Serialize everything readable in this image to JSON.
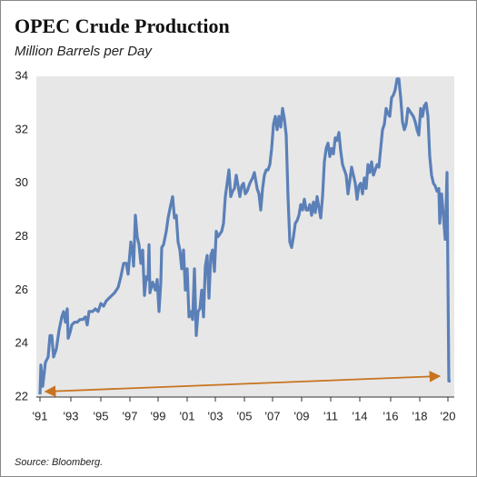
{
  "chart_data": {
    "type": "line",
    "title": "OPEC Crude Production",
    "subtitle": "Million Barrels per Day",
    "source": "Source: Bloomberg.",
    "x": [
      0,
      1,
      3,
      6,
      9,
      11,
      13,
      15,
      18,
      21,
      24,
      26,
      28,
      30,
      31,
      33,
      35,
      38,
      41,
      44,
      47,
      50,
      52,
      54,
      58,
      61,
      64,
      67,
      70,
      73,
      76,
      79,
      82,
      86,
      89,
      92,
      95,
      97,
      100,
      102,
      103,
      105,
      107,
      109,
      111,
      113,
      115,
      117,
      119,
      120,
      121,
      124,
      127,
      129,
      131,
      133,
      134,
      136,
      139,
      141,
      144,
      146,
      148,
      150,
      152,
      154,
      156,
      158,
      160,
      162,
      164,
      166,
      168,
      170,
      172,
      174,
      176,
      178,
      180,
      182,
      184,
      186,
      188,
      190,
      192,
      194,
      196,
      198,
      200,
      202,
      204,
      206,
      208,
      210,
      212,
      214,
      216,
      218,
      220,
      222,
      224,
      226,
      228,
      231,
      234,
      236,
      239,
      241,
      243,
      245,
      247,
      249,
      251,
      253,
      255,
      257,
      259,
      261,
      263,
      265,
      267,
      269,
      271,
      273,
      275,
      277,
      279,
      281,
      283,
      285,
      287,
      289,
      291,
      293,
      295,
      297,
      299,
      301,
      303,
      305,
      307,
      309,
      311,
      313,
      315,
      317,
      319,
      321,
      323,
      325,
      327,
      329,
      331,
      333,
      335,
      337,
      339,
      341,
      343,
      345,
      347,
      349,
      351,
      353,
      355,
      357,
      359,
      361,
      363,
      365,
      367,
      369,
      371,
      373,
      375,
      377,
      379,
      381,
      383,
      385,
      387,
      389,
      391,
      393,
      395,
      397,
      399,
      401,
      403,
      405,
      407,
      409,
      411,
      413,
      415,
      417,
      419,
      421,
      423,
      425,
      427,
      429,
      431,
      433,
      435,
      437,
      439,
      440,
      442,
      444,
      446,
      448,
      450,
      452
    ],
    "series": [
      {
        "color": "#5b80b8",
        "values": [
          22.1,
          23.2,
          22.4,
          23.3,
          23.5,
          24.3,
          24.3,
          23.5,
          23.8,
          24.5,
          25.0,
          25.2,
          24.8,
          25.3,
          24.2,
          24.4,
          24.7,
          24.8,
          24.8,
          24.9,
          24.9,
          25.0,
          24.7,
          25.2,
          25.2,
          25.3,
          25.2,
          25.5,
          25.4,
          25.6,
          25.7,
          25.8,
          25.9,
          26.1,
          26.5,
          27.0,
          27.0,
          26.6,
          27.8,
          27.4,
          26.9,
          28.8,
          28.0,
          27.7,
          27.0,
          27.5,
          25.8,
          26.5,
          26.4,
          27.7,
          25.9,
          26.3,
          26.0,
          26.4,
          25.2,
          26.3,
          27.6,
          27.7,
          28.2,
          28.7,
          29.2,
          29.5,
          28.7,
          28.8,
          27.8,
          27.5,
          26.8,
          27.5,
          26.0,
          26.8,
          25.0,
          25.2,
          24.9,
          26.8,
          24.3,
          25.2,
          25.3,
          26.0,
          25.0,
          26.9,
          27.3,
          25.7,
          27.3,
          27.5,
          26.7,
          28.2,
          28.0,
          28.1,
          28.2,
          28.5,
          29.5,
          30.0,
          30.5,
          29.5,
          29.7,
          29.8,
          30.3,
          29.9,
          29.5,
          29.9,
          30.0,
          29.6,
          29.7,
          30.0,
          30.2,
          30.4,
          29.8,
          29.6,
          29.0,
          29.8,
          30.3,
          30.5,
          30.5,
          30.7,
          31.3,
          32.2,
          32.5,
          32.0,
          32.5,
          32.1,
          32.8,
          32.4,
          31.8,
          29.5,
          27.8,
          27.6,
          28.0,
          28.5,
          28.6,
          28.8,
          29.2,
          29.0,
          29.4,
          29.0,
          29.0,
          29.2,
          28.8,
          29.3,
          28.9,
          29.5,
          29.1,
          28.7,
          29.5,
          30.8,
          31.3,
          31.5,
          31.0,
          31.3,
          31.1,
          31.7,
          31.6,
          31.9,
          31.2,
          30.7,
          30.5,
          30.3,
          29.6,
          30.1,
          30.6,
          30.3,
          30.0,
          29.4,
          29.9,
          30.0,
          29.6,
          30.2,
          29.8,
          30.7,
          30.4,
          30.8,
          30.3,
          30.5,
          30.7,
          30.6,
          31.3,
          32.0,
          32.2,
          32.8,
          32.6,
          32.5,
          33.2,
          33.3,
          33.5,
          33.9,
          33.9,
          33.2,
          32.3,
          32.0,
          32.2,
          32.8,
          32.7,
          32.6,
          32.5,
          32.3,
          32.0,
          31.8,
          32.8,
          32.5,
          32.9,
          33.0,
          32.5,
          31.0,
          30.3,
          30.0,
          29.9,
          29.7,
          29.8,
          28.5,
          29.6,
          28.8,
          27.9,
          30.4,
          22.6,
          22.6
        ]
      }
    ],
    "xlim": [
      -4,
      456
    ],
    "xticks": [
      {
        "value": 0,
        "label": "'91"
      },
      {
        "value": 34,
        "label": "'93"
      },
      {
        "value": 67,
        "label": "'95"
      },
      {
        "value": 99,
        "label": "'97"
      },
      {
        "value": 130,
        "label": "'99"
      },
      {
        "value": 162,
        "label": "'01"
      },
      {
        "value": 193,
        "label": "'03"
      },
      {
        "value": 225,
        "label": "'05"
      },
      {
        "value": 256,
        "label": "'07"
      },
      {
        "value": 288,
        "label": "'09"
      },
      {
        "value": 320,
        "label": "'11"
      },
      {
        "value": 352,
        "label": "'14"
      },
      {
        "value": 386,
        "label": "'16"
      },
      {
        "value": 418,
        "label": "'18"
      },
      {
        "value": 449,
        "label": "'20"
      }
    ],
    "ylim": [
      22,
      34
    ],
    "yticks": [
      22,
      24,
      26,
      28,
      30,
      32,
      34
    ]
  }
}
